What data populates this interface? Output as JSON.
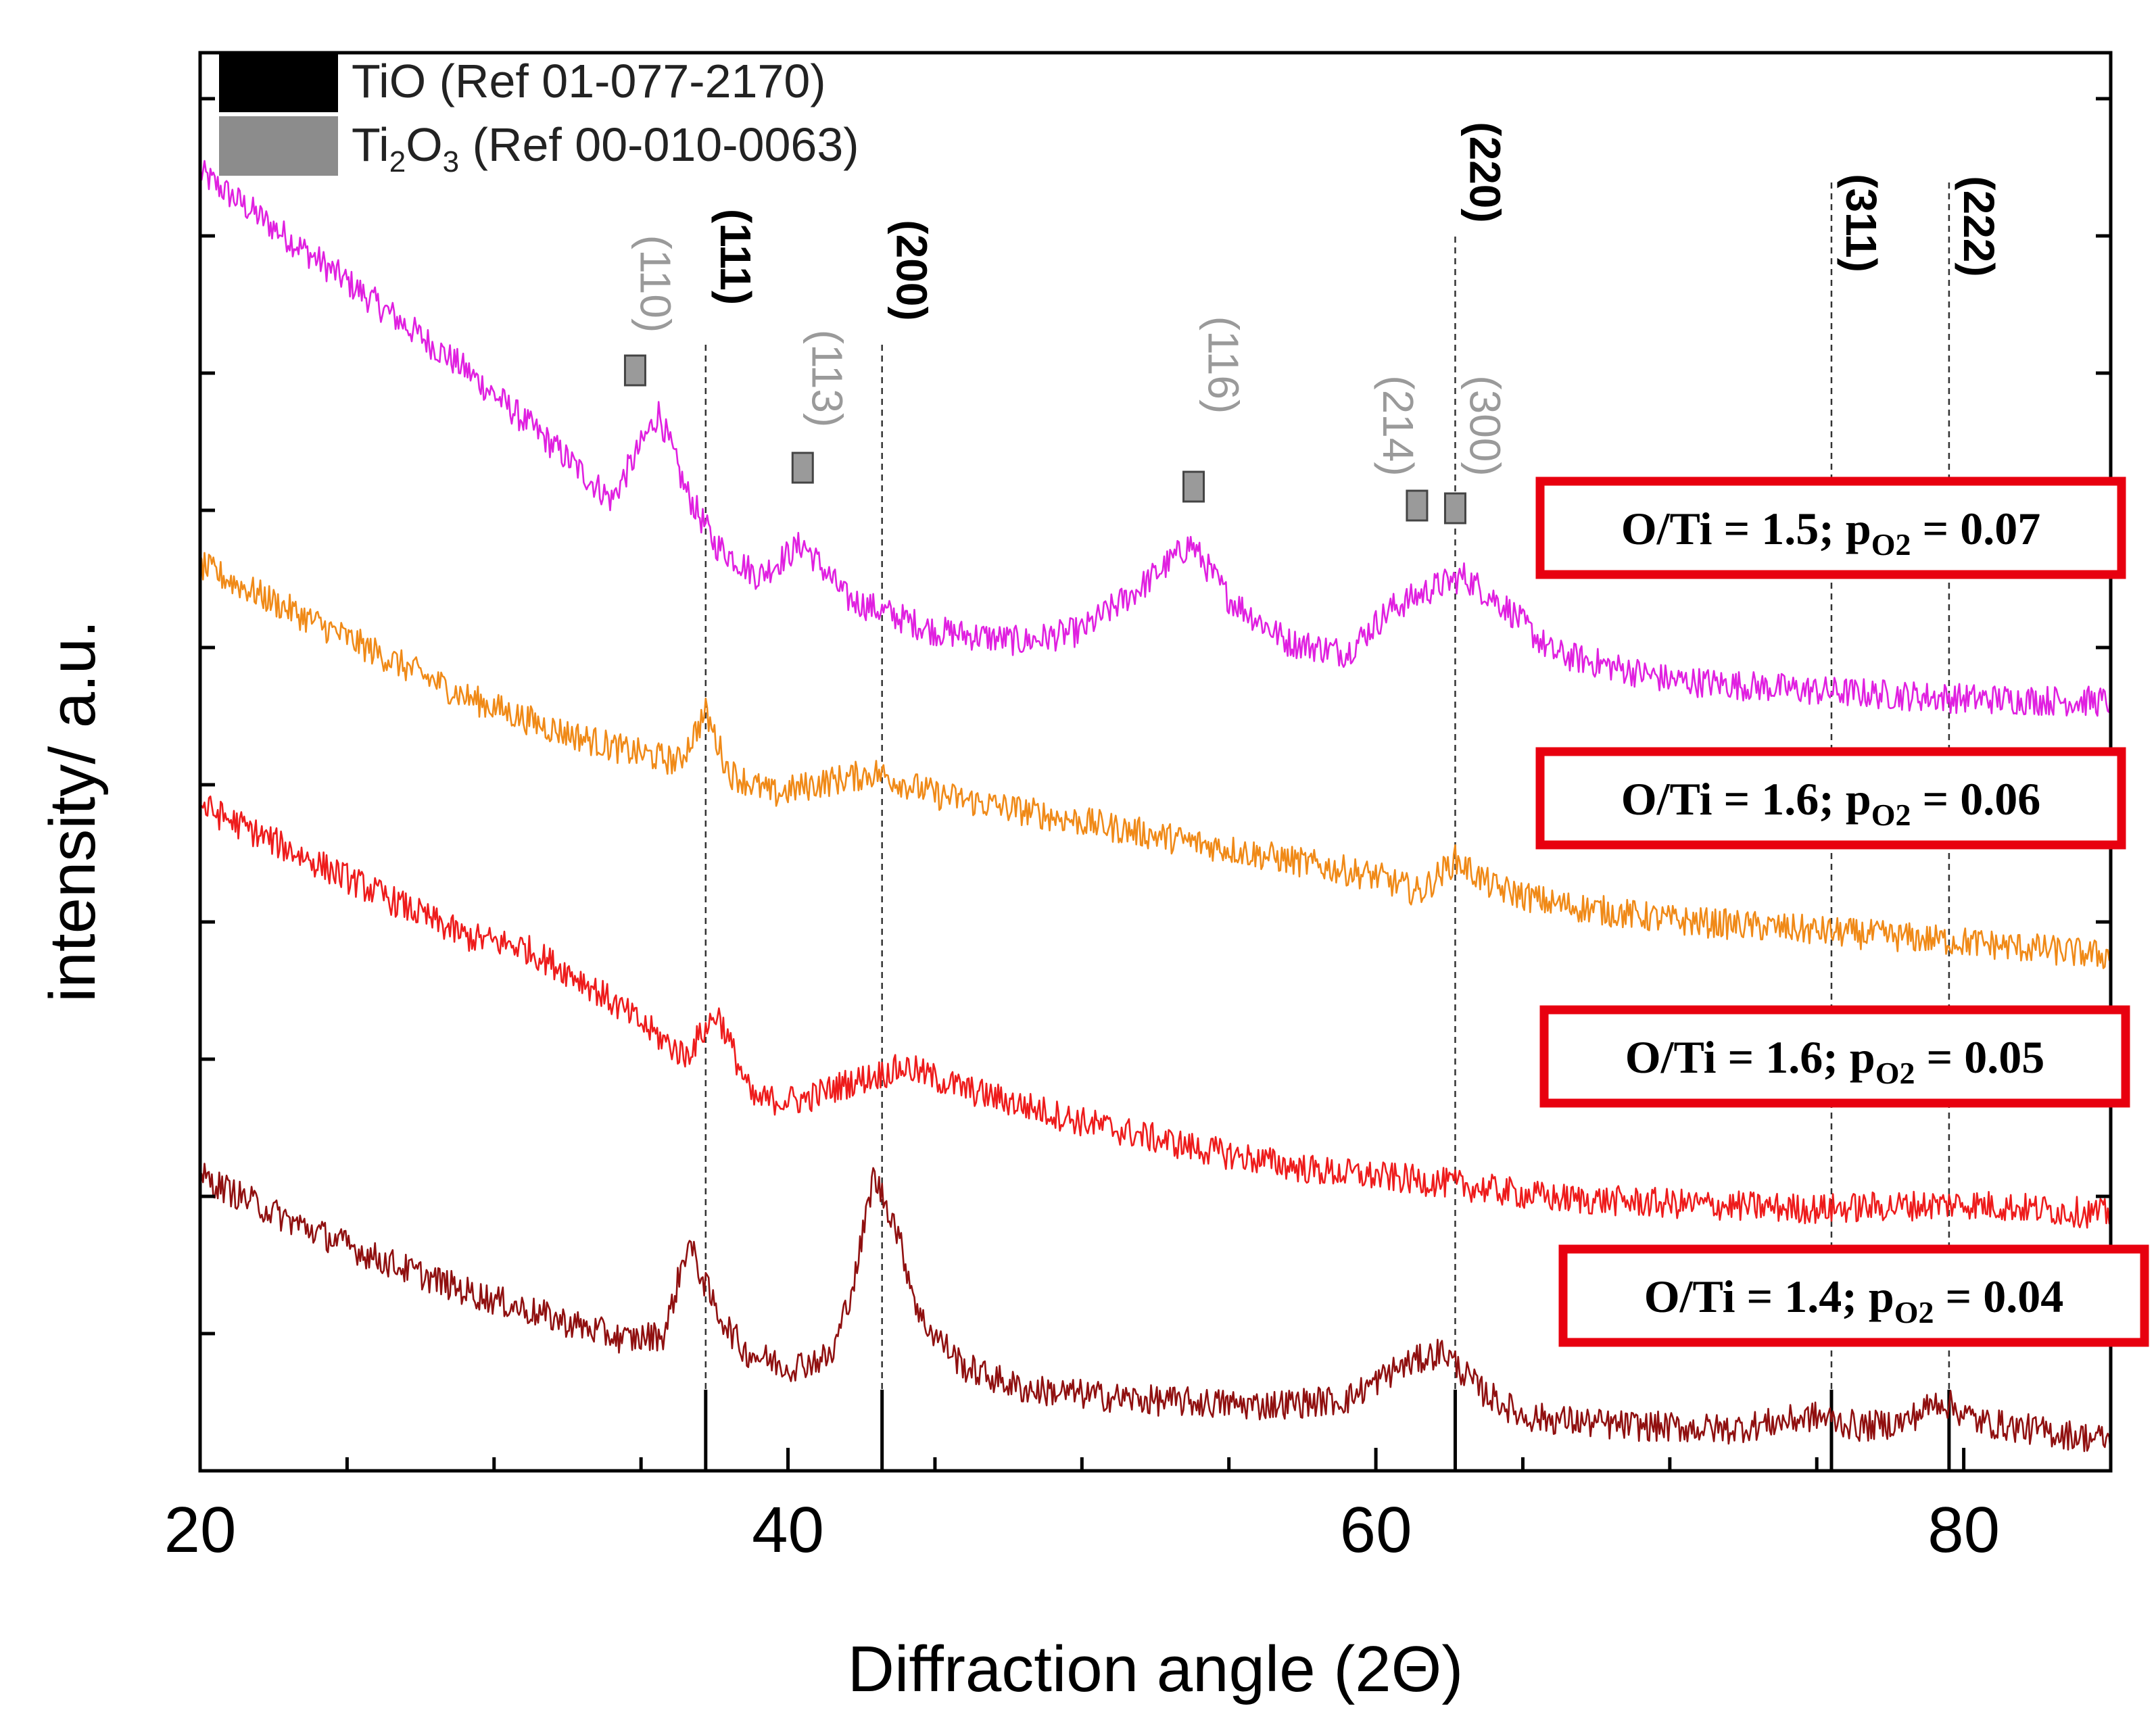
{
  "chart_data": {
    "type": "line",
    "xlabel": "Diffraction angle (2Θ)",
    "ylabel": "intensity/ a.u.",
    "xlim": [
      20,
      85
    ],
    "x_ticks": [
      20,
      40,
      60,
      80
    ],
    "y_ticks_shown": false,
    "grid": false,
    "legend_position": "top-left",
    "legend": [
      {
        "label_main": "TiO",
        "label_ref": " (Ref 01-077-2170)",
        "color": "#000000"
      },
      {
        "label_main": "Ti",
        "sub1": "2",
        "label_o": "O",
        "sub2": "3",
        "label_ref": " (Ref 00-010-0063)",
        "color": "#8c8c8c"
      }
    ],
    "series": [
      {
        "key": "s07",
        "color": "#e020e0",
        "label": {
          "prefix": "O/Ti = 1.5; p",
          "sub": "O2",
          "suffix": " =  0.07"
        },
        "points": [
          [
            20,
            11.9
          ],
          [
            23,
            11.3
          ],
          [
            26,
            10.7
          ],
          [
            29,
            10.1
          ],
          [
            32,
            9.4
          ],
          [
            34,
            8.9
          ],
          [
            35.6,
            9.7
          ],
          [
            36.5,
            9.0
          ],
          [
            37.5,
            8.5
          ],
          [
            39,
            8.2
          ],
          [
            40.5,
            8.5
          ],
          [
            42,
            8.0
          ],
          [
            45,
            7.7
          ],
          [
            48,
            7.6
          ],
          [
            50,
            7.7
          ],
          [
            52,
            8.1
          ],
          [
            53.7,
            8.5
          ],
          [
            55,
            8.0
          ],
          [
            57,
            7.6
          ],
          [
            59,
            7.5
          ],
          [
            60.5,
            7.9
          ],
          [
            62,
            8.1
          ],
          [
            63,
            8.2
          ],
          [
            64.5,
            7.9
          ],
          [
            66,
            7.5
          ],
          [
            70,
            7.25
          ],
          [
            75,
            7.15
          ],
          [
            80,
            7.08
          ],
          [
            85,
            7.05
          ]
        ]
      },
      {
        "key": "s06",
        "color": "#f08a18",
        "label": {
          "prefix": "O/Ti = 1.6; p",
          "sub": "O2",
          "suffix": " =  0.06"
        },
        "points": [
          [
            20,
            8.3
          ],
          [
            23,
            7.9
          ],
          [
            26,
            7.5
          ],
          [
            29,
            7.1
          ],
          [
            32,
            6.8
          ],
          [
            34.5,
            6.6
          ],
          [
            36.3,
            6.5
          ],
          [
            37.2,
            6.95
          ],
          [
            38,
            6.4
          ],
          [
            39.5,
            6.2
          ],
          [
            41,
            6.3
          ],
          [
            43,
            6.4
          ],
          [
            45,
            6.2
          ],
          [
            48,
            6.05
          ],
          [
            52,
            5.85
          ],
          [
            56,
            5.65
          ],
          [
            60,
            5.45
          ],
          [
            61.5,
            5.3
          ],
          [
            62.7,
            5.6
          ],
          [
            64,
            5.35
          ],
          [
            66,
            5.2
          ],
          [
            70,
            5.05
          ],
          [
            75,
            4.95
          ],
          [
            80,
            4.85
          ],
          [
            85,
            4.72
          ]
        ]
      },
      {
        "key": "s05",
        "color": "#ee1c1c",
        "label": {
          "prefix": "O/Ti = 1.6; p",
          "sub": "O2",
          "suffix": " =  0.05"
        },
        "points": [
          [
            20,
            6.1
          ],
          [
            23,
            5.7
          ],
          [
            26,
            5.3
          ],
          [
            29,
            4.9
          ],
          [
            31,
            4.8
          ],
          [
            33,
            4.5
          ],
          [
            35,
            4.1
          ],
          [
            36.5,
            3.8
          ],
          [
            37.6,
            4.2
          ],
          [
            38.8,
            3.4
          ],
          [
            40.5,
            3.4
          ],
          [
            42,
            3.55
          ],
          [
            44,
            3.7
          ],
          [
            46,
            3.5
          ],
          [
            50,
            3.2
          ],
          [
            54,
            2.95
          ],
          [
            58,
            2.75
          ],
          [
            62,
            2.65
          ],
          [
            66,
            2.5
          ],
          [
            70,
            2.45
          ],
          [
            75,
            2.4
          ],
          [
            80,
            2.45
          ],
          [
            85,
            2.35
          ]
        ]
      },
      {
        "key": "s04",
        "color": "#901010",
        "label": {
          "prefix": "O/Ti = 1.4; p",
          "sub": "O2",
          "suffix": " =  0.04"
        },
        "points": [
          [
            20,
            2.7
          ],
          [
            23,
            2.3
          ],
          [
            26,
            1.95
          ],
          [
            29,
            1.65
          ],
          [
            32,
            1.4
          ],
          [
            34.5,
            1.2
          ],
          [
            35.8,
            1.25
          ],
          [
            36.6,
            2.1
          ],
          [
            37.5,
            1.5
          ],
          [
            38.5,
            1.1
          ],
          [
            40,
            0.95
          ],
          [
            41.5,
            1.05
          ],
          [
            42.3,
            1.8
          ],
          [
            42.9,
            2.7
          ],
          [
            43.6,
            2.3
          ],
          [
            44.5,
            1.4
          ],
          [
            46,
            0.95
          ],
          [
            48,
            0.75
          ],
          [
            52,
            0.65
          ],
          [
            56,
            0.6
          ],
          [
            59,
            0.65
          ],
          [
            60.8,
            0.95
          ],
          [
            62.3,
            1.1
          ],
          [
            63.5,
            0.75
          ],
          [
            65,
            0.5
          ],
          [
            68,
            0.42
          ],
          [
            72,
            0.38
          ],
          [
            75,
            0.5
          ],
          [
            76.5,
            0.4
          ],
          [
            78,
            0.45
          ],
          [
            79.2,
            0.65
          ],
          [
            80.5,
            0.45
          ],
          [
            83,
            0.35
          ],
          [
            85,
            0.28
          ]
        ]
      }
    ],
    "tio_reflections": [
      {
        "hkl": "(111)",
        "x": 37.2
      },
      {
        "hkl": "(200)",
        "x": 43.2
      },
      {
        "hkl": "(220)",
        "x": 62.7
      },
      {
        "hkl": "(311)",
        "x": 75.5
      },
      {
        "hkl": "(222)",
        "x": 79.5
      }
    ],
    "ti2o3_reflections": [
      {
        "hkl": "(110)",
        "x": 34.8
      },
      {
        "hkl": "(113)",
        "x": 40.5
      },
      {
        "hkl": "(116)",
        "x": 53.8
      },
      {
        "hkl": "(214)",
        "x": 61.4
      },
      {
        "hkl": "(300)",
        "x": 62.7
      }
    ]
  }
}
